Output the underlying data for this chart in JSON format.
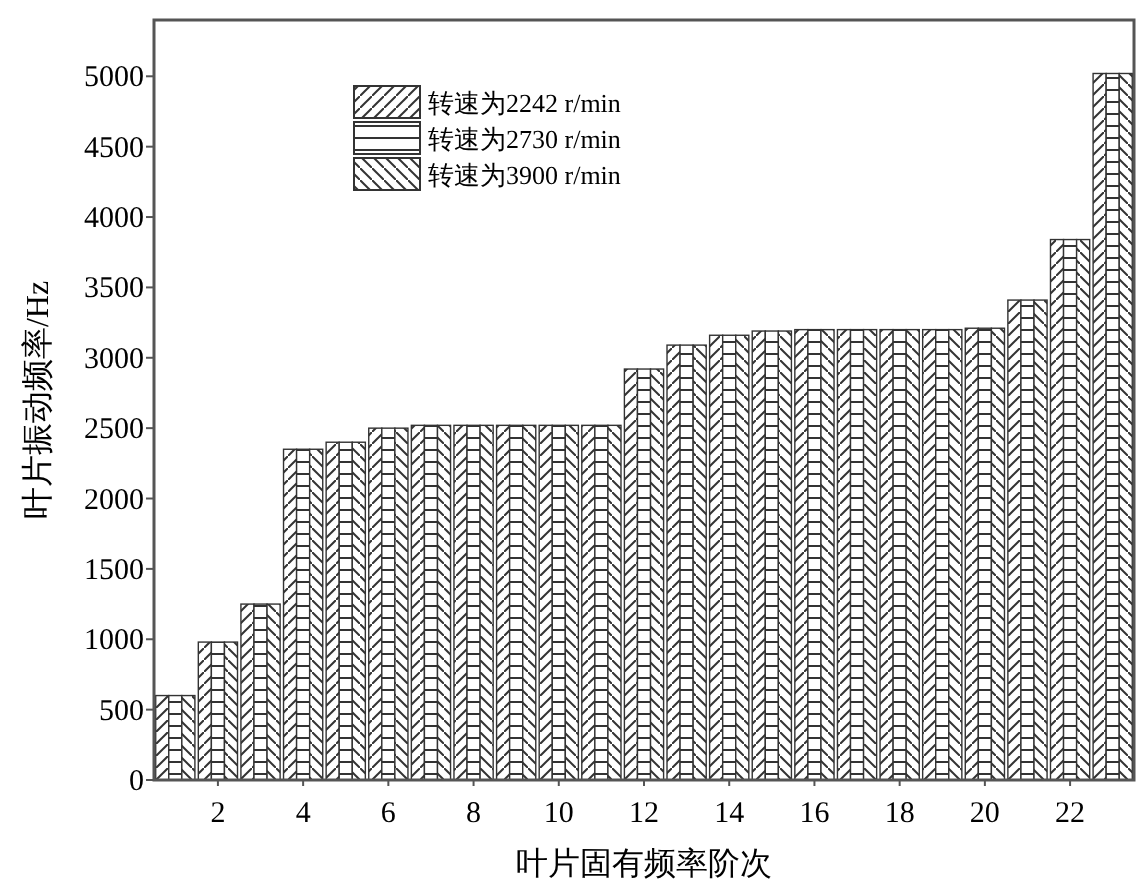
{
  "chart_data": {
    "type": "bar",
    "xlabel": "叶片固有频率阶次",
    "ylabel": "叶片振动频率/Hz",
    "categories": [
      null,
      "2",
      null,
      "4",
      null,
      "6",
      null,
      "8",
      null,
      "10",
      null,
      "12",
      null,
      "14",
      null,
      "16",
      null,
      "18",
      null,
      "20",
      null,
      "22",
      null
    ],
    "series": [
      {
        "name": "转速为2242 r/min",
        "color": "#333333",
        "values": [
          600,
          980,
          1250,
          2350,
          2400,
          2500,
          2520,
          2520,
          2520,
          2520,
          2520,
          2920,
          3090,
          3160,
          3190,
          3200,
          3200,
          3200,
          3200,
          3210,
          3410,
          3840,
          5020
        ]
      },
      {
        "name": "转速为2730 r/min",
        "color": "#333333",
        "values": [
          600,
          980,
          1250,
          2350,
          2400,
          2500,
          2520,
          2520,
          2520,
          2520,
          2520,
          2920,
          3090,
          3160,
          3190,
          3200,
          3200,
          3200,
          3200,
          3210,
          3410,
          3840,
          5020
        ]
      },
      {
        "name": "转速为3900 r/min",
        "color": "#333333",
        "values": [
          600,
          980,
          1250,
          2350,
          2400,
          2500,
          2520,
          2520,
          2520,
          2520,
          2520,
          2920,
          3090,
          3160,
          3190,
          3200,
          3200,
          3200,
          3200,
          3210,
          3410,
          3840,
          5020
        ]
      }
    ],
    "ylim": [
      0,
      5400
    ],
    "yticks": [
      0,
      500,
      1000,
      1500,
      2000,
      2500,
      3000,
      3500,
      4000,
      4500,
      5000
    ],
    "legend": "top left"
  }
}
